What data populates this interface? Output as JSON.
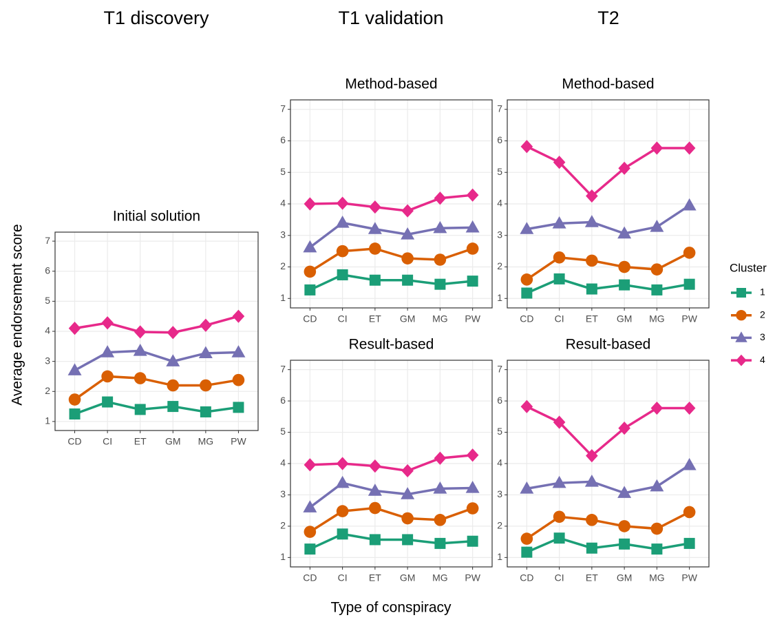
{
  "figure": {
    "column_titles": [
      "T1 discovery",
      "T1 validation",
      "T2"
    ],
    "y_label": "Average endorsement score",
    "x_label": "Type of conspiracy",
    "legend_title": "Cluster"
  },
  "chart_data": [
    {
      "type": "line",
      "title": "Initial solution",
      "categories": [
        "CD",
        "CI",
        "ET",
        "GM",
        "MG",
        "PW"
      ],
      "ylim": [
        0.7,
        7.3
      ],
      "yticks": [
        1,
        2,
        3,
        4,
        5,
        6,
        7
      ],
      "grid": true,
      "series": [
        {
          "name": "1",
          "color": "#1b9e77",
          "marker": "square",
          "values": [
            1.25,
            1.65,
            1.4,
            1.5,
            1.32,
            1.47
          ]
        },
        {
          "name": "2",
          "color": "#d95f02",
          "marker": "circle",
          "values": [
            1.73,
            2.5,
            2.44,
            2.2,
            2.2,
            2.38
          ]
        },
        {
          "name": "3",
          "color": "#7570b3",
          "marker": "triangle",
          "values": [
            2.7,
            3.3,
            3.35,
            3.0,
            3.27,
            3.3
          ]
        },
        {
          "name": "4",
          "color": "#e7298a",
          "marker": "diamond",
          "values": [
            4.1,
            4.28,
            3.98,
            3.96,
            4.2,
            4.5
          ]
        }
      ]
    },
    {
      "type": "line",
      "title": "Method-based",
      "categories": [
        "CD",
        "CI",
        "ET",
        "GM",
        "MG",
        "PW"
      ],
      "ylim": [
        0.7,
        7.3
      ],
      "yticks": [
        1,
        2,
        3,
        4,
        5,
        6,
        7
      ],
      "grid": true,
      "series": [
        {
          "name": "1",
          "color": "#1b9e77",
          "marker": "square",
          "values": [
            1.27,
            1.75,
            1.58,
            1.58,
            1.45,
            1.55
          ]
        },
        {
          "name": "2",
          "color": "#d95f02",
          "marker": "circle",
          "values": [
            1.85,
            2.5,
            2.58,
            2.27,
            2.23,
            2.58
          ]
        },
        {
          "name": "3",
          "color": "#7570b3",
          "marker": "triangle",
          "values": [
            2.62,
            3.4,
            3.2,
            3.03,
            3.23,
            3.25
          ]
        },
        {
          "name": "4",
          "color": "#e7298a",
          "marker": "diamond",
          "values": [
            4.0,
            4.02,
            3.9,
            3.78,
            4.18,
            4.28
          ]
        }
      ]
    },
    {
      "type": "line",
      "title": "Method-based",
      "categories": [
        "CD",
        "CI",
        "ET",
        "GM",
        "MG",
        "PW"
      ],
      "ylim": [
        0.7,
        7.3
      ],
      "yticks": [
        1,
        2,
        3,
        4,
        5,
        6,
        7
      ],
      "grid": true,
      "series": [
        {
          "name": "1",
          "color": "#1b9e77",
          "marker": "square",
          "values": [
            1.17,
            1.62,
            1.3,
            1.43,
            1.27,
            1.45
          ]
        },
        {
          "name": "2",
          "color": "#d95f02",
          "marker": "circle",
          "values": [
            1.6,
            2.3,
            2.2,
            2.0,
            1.92,
            2.45
          ]
        },
        {
          "name": "3",
          "color": "#7570b3",
          "marker": "triangle",
          "values": [
            3.2,
            3.38,
            3.42,
            3.06,
            3.27,
            3.95
          ]
        },
        {
          "name": "4",
          "color": "#e7298a",
          "marker": "diamond",
          "values": [
            5.82,
            5.32,
            4.25,
            5.13,
            5.77,
            5.77
          ]
        }
      ]
    },
    {
      "type": "line",
      "title": "Result-based",
      "categories": [
        "CD",
        "CI",
        "ET",
        "GM",
        "MG",
        "PW"
      ],
      "ylim": [
        0.7,
        7.3
      ],
      "yticks": [
        1,
        2,
        3,
        4,
        5,
        6,
        7
      ],
      "grid": true,
      "series": [
        {
          "name": "1",
          "color": "#1b9e77",
          "marker": "square",
          "values": [
            1.27,
            1.75,
            1.57,
            1.57,
            1.45,
            1.52
          ]
        },
        {
          "name": "2",
          "color": "#d95f02",
          "marker": "circle",
          "values": [
            1.82,
            2.48,
            2.58,
            2.25,
            2.2,
            2.57
          ]
        },
        {
          "name": "3",
          "color": "#7570b3",
          "marker": "triangle",
          "values": [
            2.6,
            3.38,
            3.13,
            3.02,
            3.2,
            3.22
          ]
        },
        {
          "name": "4",
          "color": "#e7298a",
          "marker": "diamond",
          "values": [
            3.96,
            4.0,
            3.92,
            3.77,
            4.17,
            4.27
          ]
        }
      ]
    },
    {
      "type": "line",
      "title": "Result-based",
      "categories": [
        "CD",
        "CI",
        "ET",
        "GM",
        "MG",
        "PW"
      ],
      "ylim": [
        0.7,
        7.3
      ],
      "yticks": [
        1,
        2,
        3,
        4,
        5,
        6,
        7
      ],
      "grid": true,
      "series": [
        {
          "name": "1",
          "color": "#1b9e77",
          "marker": "square",
          "values": [
            1.17,
            1.62,
            1.3,
            1.43,
            1.27,
            1.45
          ]
        },
        {
          "name": "2",
          "color": "#d95f02",
          "marker": "circle",
          "values": [
            1.6,
            2.3,
            2.2,
            2.0,
            1.92,
            2.45
          ]
        },
        {
          "name": "3",
          "color": "#7570b3",
          "marker": "triangle",
          "values": [
            3.2,
            3.38,
            3.42,
            3.06,
            3.27,
            3.95
          ]
        },
        {
          "name": "4",
          "color": "#e7298a",
          "marker": "diamond",
          "values": [
            5.82,
            5.32,
            4.25,
            5.13,
            5.77,
            5.77
          ]
        }
      ]
    }
  ]
}
